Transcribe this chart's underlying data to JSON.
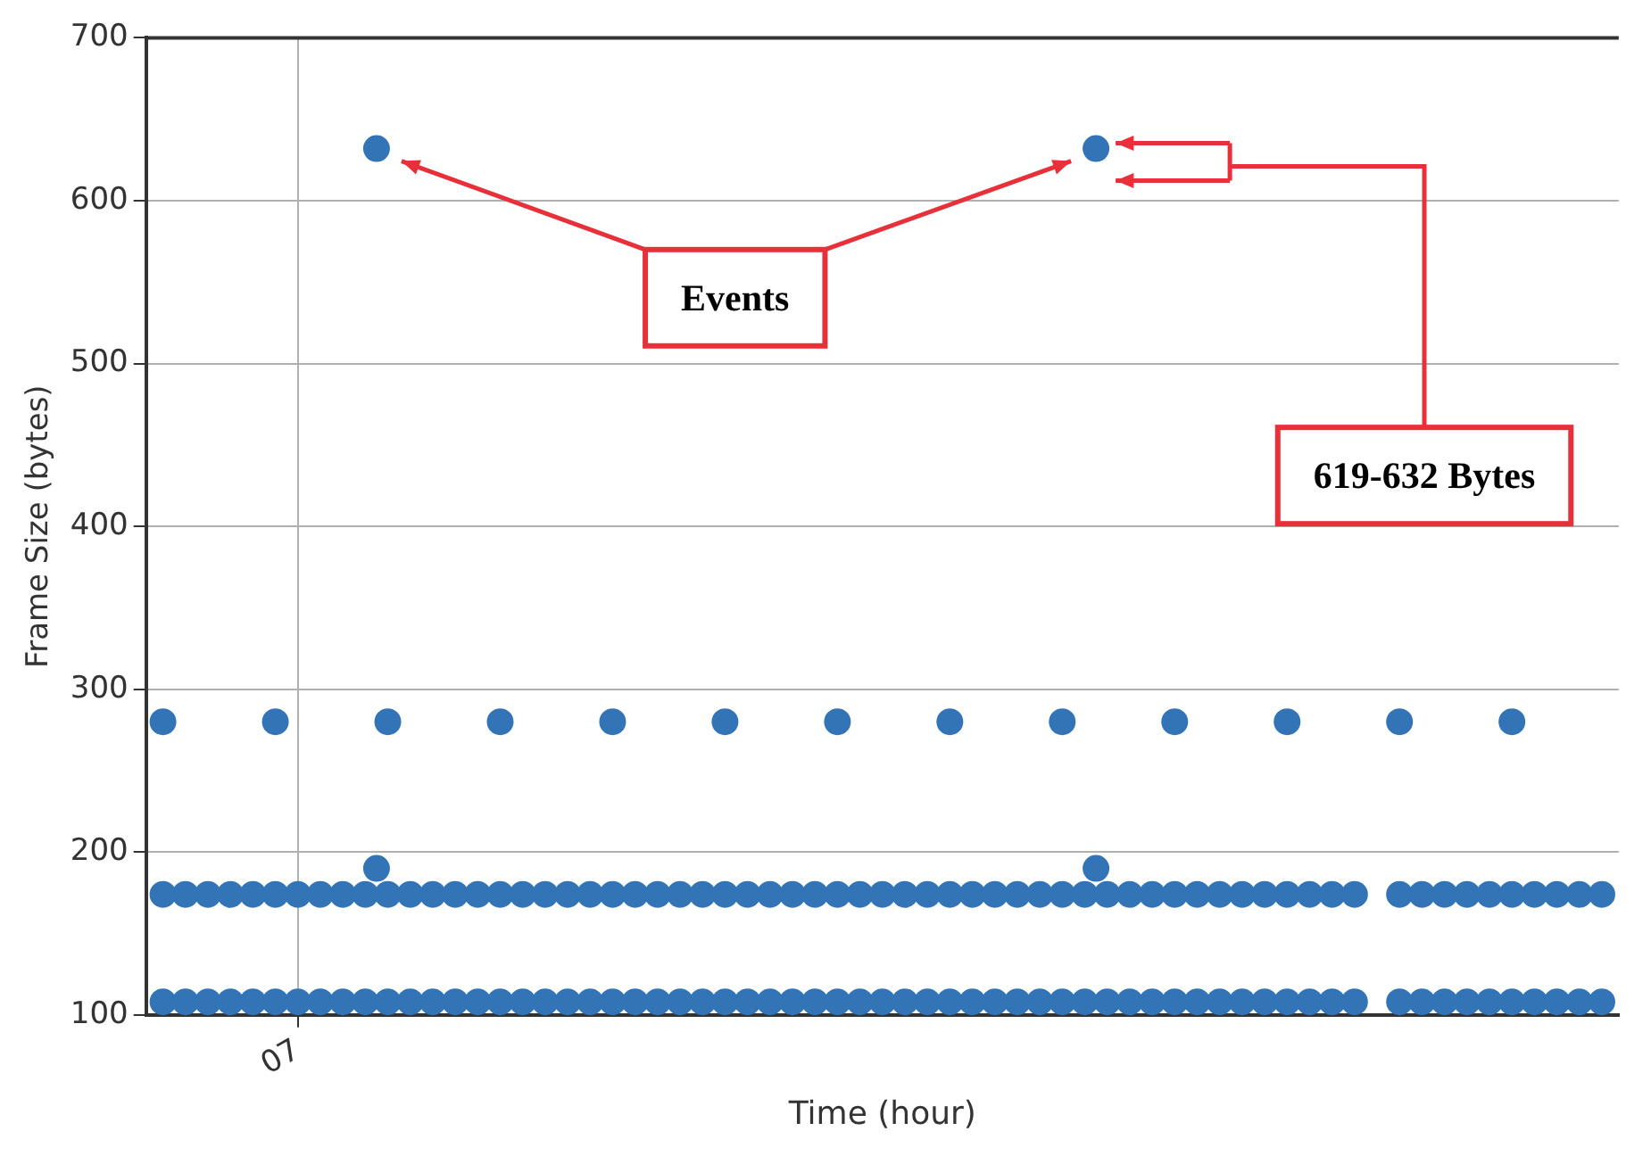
{
  "chart_data": {
    "type": "scatter",
    "xlabel": "Time (hour)",
    "ylabel": "Frame Size (bytes)",
    "categories": [
      null,
      null,
      null,
      null,
      null,
      null,
      null,
      null,
      null,
      null,
      null,
      null,
      null,
      "07",
      null,
      null,
      null,
      null,
      null,
      null,
      null,
      null,
      null,
      null,
      null,
      null,
      null,
      null,
      null,
      null,
      null,
      null,
      null,
      null,
      null,
      null,
      null,
      null,
      null,
      null,
      null,
      null,
      null,
      null,
      null,
      null,
      null,
      null,
      null,
      null,
      null,
      null,
      null,
      null,
      null,
      null,
      null,
      null,
      null,
      null,
      null,
      null,
      null,
      null,
      null,
      null,
      null,
      null,
      null,
      null,
      null,
      null,
      null,
      null,
      null,
      null,
      null,
      null,
      null,
      null,
      null,
      null,
      null,
      null,
      null,
      null,
      null,
      null,
      null,
      null,
      null,
      null,
      null,
      null,
      null,
      null,
      null,
      null,
      null,
      null,
      null,
      null,
      null,
      null,
      null,
      null,
      null,
      null,
      null,
      null,
      null,
      null,
      null,
      null,
      null,
      null,
      null,
      null,
      null,
      null,
      null,
      null,
      null,
      null,
      null,
      null,
      null,
      null,
      null,
      null,
      null
    ],
    "ylim": [
      100,
      700
    ],
    "yticks": [
      100,
      200,
      300,
      400,
      500,
      600,
      700
    ],
    "grid": true,
    "legend": false,
    "marker": "circle",
    "annotations": [
      "Events",
      "619-632 Bytes"
    ],
    "series": [
      {
        "color": "#3274b5",
        "values": [
          null,
          280,
          null,
          null,
          null,
          null,
          null,
          null,
          null,
          null,
          null,
          280,
          null,
          null,
          null,
          null,
          null,
          null,
          null,
          null,
          null,
          280,
          null,
          null,
          null,
          null,
          null,
          null,
          null,
          null,
          null,
          280,
          null,
          null,
          null,
          null,
          null,
          null,
          null,
          null,
          null,
          280,
          null,
          null,
          null,
          null,
          null,
          null,
          null,
          null,
          null,
          280,
          null,
          null,
          null,
          null,
          null,
          null,
          null,
          null,
          null,
          280,
          null,
          null,
          null,
          null,
          null,
          null,
          null,
          null,
          null,
          280,
          null,
          null,
          null,
          null,
          null,
          null,
          null,
          null,
          null,
          280,
          null,
          null,
          null,
          null,
          null,
          null,
          null,
          null,
          null,
          280,
          null,
          null,
          null,
          null,
          null,
          null,
          null,
          null,
          null,
          280,
          null,
          null,
          null,
          null,
          null,
          null,
          null,
          null,
          null,
          280,
          null,
          null,
          null,
          null,
          null,
          null,
          null,
          null,
          null,
          280,
          null,
          null,
          null,
          null,
          null,
          null,
          null,
          null,
          null
        ]
      },
      {
        "color": "#3274b5",
        "values": [
          null,
          null,
          null,
          null,
          null,
          null,
          null,
          null,
          null,
          null,
          null,
          null,
          null,
          null,
          null,
          null,
          null,
          null,
          null,
          null,
          632,
          null,
          null,
          null,
          null,
          null,
          null,
          null,
          null,
          null,
          null,
          null,
          null,
          null,
          null,
          null,
          null,
          null,
          null,
          null,
          null,
          null,
          null,
          null,
          null,
          null,
          null,
          null,
          null,
          null,
          null,
          null,
          null,
          null,
          null,
          null,
          null,
          null,
          null,
          null,
          null,
          null,
          null,
          null,
          null,
          null,
          null,
          null,
          null,
          null,
          null,
          null,
          null,
          null,
          null,
          null,
          null,
          null,
          null,
          null,
          null,
          null,
          null,
          null,
          632,
          null,
          null,
          null,
          null,
          null,
          null,
          null,
          null,
          null,
          null,
          null,
          null,
          null,
          null,
          null,
          null,
          null,
          null,
          null,
          null,
          null,
          null,
          null,
          null,
          null,
          null,
          null,
          null,
          null,
          null,
          null,
          null,
          null,
          null,
          null,
          null,
          null,
          null,
          null,
          null,
          null,
          null,
          null,
          null,
          null,
          null
        ]
      },
      {
        "color": "#3274b5",
        "values": [
          null,
          null,
          null,
          null,
          null,
          null,
          null,
          null,
          null,
          null,
          null,
          null,
          null,
          null,
          null,
          null,
          null,
          null,
          null,
          null,
          190,
          null,
          null,
          null,
          null,
          null,
          null,
          null,
          null,
          null,
          null,
          null,
          null,
          null,
          null,
          null,
          null,
          null,
          null,
          null,
          null,
          null,
          null,
          null,
          null,
          null,
          null,
          null,
          null,
          null,
          null,
          null,
          null,
          null,
          null,
          null,
          null,
          null,
          null,
          null,
          null,
          null,
          null,
          null,
          null,
          null,
          null,
          null,
          null,
          null,
          null,
          null,
          null,
          null,
          null,
          null,
          null,
          null,
          null,
          null,
          null,
          null,
          null,
          null,
          190,
          null,
          null,
          null,
          null,
          null,
          null,
          null,
          null,
          null,
          null,
          null,
          null,
          null,
          null,
          null,
          null,
          null,
          null,
          null,
          null,
          null,
          null,
          null,
          null,
          null,
          null,
          null,
          null,
          null,
          null,
          null,
          null,
          null,
          null,
          null,
          null,
          null,
          null,
          null,
          null,
          null,
          null,
          null,
          null,
          null,
          null
        ]
      },
      {
        "color": "#3274b5",
        "values": [
          null,
          174,
          null,
          174,
          null,
          174,
          null,
          174,
          null,
          174,
          null,
          174,
          null,
          174,
          null,
          174,
          null,
          174,
          null,
          174,
          null,
          174,
          null,
          174,
          null,
          174,
          null,
          174,
          null,
          174,
          null,
          174,
          null,
          174,
          null,
          174,
          null,
          174,
          null,
          174,
          null,
          174,
          null,
          174,
          null,
          174,
          null,
          174,
          null,
          174,
          null,
          174,
          null,
          174,
          null,
          174,
          null,
          174,
          null,
          174,
          null,
          174,
          null,
          174,
          null,
          174,
          null,
          174,
          null,
          174,
          null,
          174,
          null,
          174,
          null,
          174,
          null,
          174,
          null,
          174,
          null,
          174,
          null,
          174,
          null,
          174,
          null,
          174,
          null,
          174,
          null,
          174,
          null,
          174,
          null,
          174,
          null,
          174,
          null,
          174,
          null,
          174,
          null,
          174,
          null,
          174,
          null,
          174,
          null,
          null,
          null,
          174,
          null,
          174,
          null,
          174,
          null,
          174,
          null,
          174,
          null,
          174,
          null,
          174,
          null,
          174,
          null,
          174,
          null,
          174,
          null
        ]
      },
      {
        "color": "#3274b5",
        "values": [
          null,
          108,
          null,
          108,
          null,
          108,
          null,
          108,
          null,
          108,
          null,
          108,
          null,
          108,
          null,
          108,
          null,
          108,
          null,
          108,
          null,
          108,
          null,
          108,
          null,
          108,
          null,
          108,
          null,
          108,
          null,
          108,
          null,
          108,
          null,
          108,
          null,
          108,
          null,
          108,
          null,
          108,
          null,
          108,
          null,
          108,
          null,
          108,
          null,
          108,
          null,
          108,
          null,
          108,
          null,
          108,
          null,
          108,
          null,
          108,
          null,
          108,
          null,
          108,
          null,
          108,
          null,
          108,
          null,
          108,
          null,
          108,
          null,
          108,
          null,
          108,
          null,
          108,
          null,
          108,
          null,
          108,
          null,
          108,
          null,
          108,
          null,
          108,
          null,
          108,
          null,
          108,
          null,
          108,
          null,
          108,
          null,
          108,
          null,
          108,
          null,
          108,
          null,
          108,
          null,
          108,
          null,
          108,
          null,
          null,
          null,
          108,
          null,
          108,
          null,
          108,
          null,
          108,
          null,
          108,
          null,
          108,
          null,
          108,
          null,
          108,
          null,
          108,
          null,
          108,
          null
        ]
      }
    ]
  }
}
